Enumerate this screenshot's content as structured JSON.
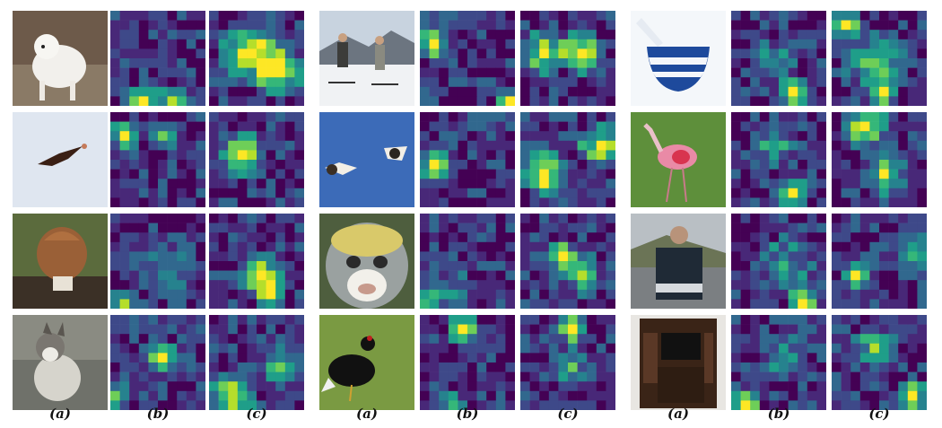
{
  "figure": {
    "column_labels": [
      "(a)",
      "(b)",
      "(c)"
    ],
    "groups": [
      {
        "rows": [
          {
            "image_subject": "white dog",
            "image_description": "Fluffy white dog standing next to a person's legs"
          },
          {
            "image_subject": "bird in flight",
            "image_description": "Dark bird of prey soaring against pale blue sky"
          },
          {
            "image_subject": "mushroom",
            "image_description": "Brown wrinkled morel-like mushroom on forest floor"
          },
          {
            "image_subject": "husky",
            "image_description": "Grey and white husky sitting on a road"
          }
        ]
      },
      {
        "rows": [
          {
            "image_subject": "skiers",
            "image_description": "Two skiers standing on snow with mountains behind"
          },
          {
            "image_subject": "birds",
            "image_description": "Two birds flying against a blue sky"
          },
          {
            "image_subject": "monkey",
            "image_description": "Close-up of a monkey face with white muzzle"
          },
          {
            "image_subject": "black grouse",
            "image_description": "Black grouse with red comb on grass"
          }
        ]
      },
      {
        "rows": [
          {
            "image_subject": "mortar and pestle",
            "image_description": "Blue and white striped mortar with pestle"
          },
          {
            "image_subject": "spoonbill",
            "image_description": "Pink spoonbill standing in grass"
          },
          {
            "image_subject": "person in sweater",
            "image_description": "Person wearing a dark patterned sweater"
          },
          {
            "image_subject": "entertainment center",
            "image_description": "Dark wooden entertainment cabinet with TV"
          }
        ]
      }
    ],
    "colormap": [
      "#440154",
      "#482878",
      "#3e4989",
      "#31688e",
      "#26828e",
      "#1f9e89",
      "#35b779",
      "#6ece58",
      "#b5de2b",
      "#fde725"
    ]
  }
}
